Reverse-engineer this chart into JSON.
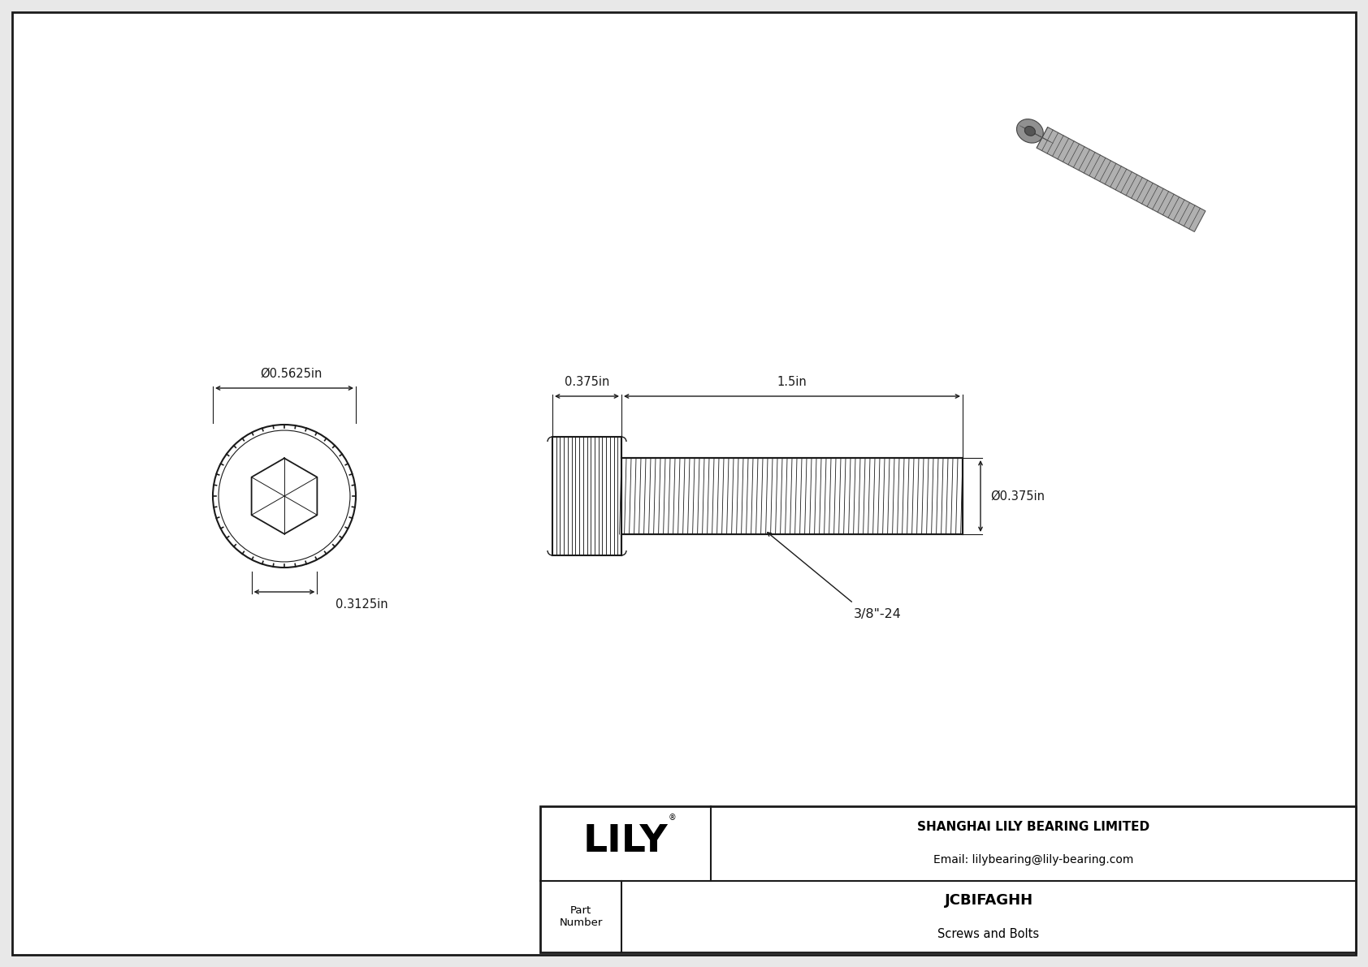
{
  "bg_color": "#e8e8e8",
  "drawing_bg": "#ffffff",
  "border_color": "#1a1a1a",
  "line_color": "#1a1a1a",
  "dim_color": "#1a1a1a",
  "title": "JCBIFAGHH",
  "subtitle": "Screws and Bolts",
  "company": "SHANGHAI LILY BEARING LIMITED",
  "email": "Email: lilybearing@lily-bearing.com",
  "part_label": "Part\nNumber",
  "lily_logo": "LILY",
  "dim_head_diameter": "Ø0.5625in",
  "dim_hex_width": "0.3125in",
  "dim_head_len": "0.375in",
  "dim_shaft_len": "1.5in",
  "dim_shaft_dia": "Ø0.375in",
  "dim_thread": "3/8\"-24",
  "font_size_dim": 10.5,
  "font_size_title": 13,
  "font_size_company": 10,
  "font_size_logo": 34
}
